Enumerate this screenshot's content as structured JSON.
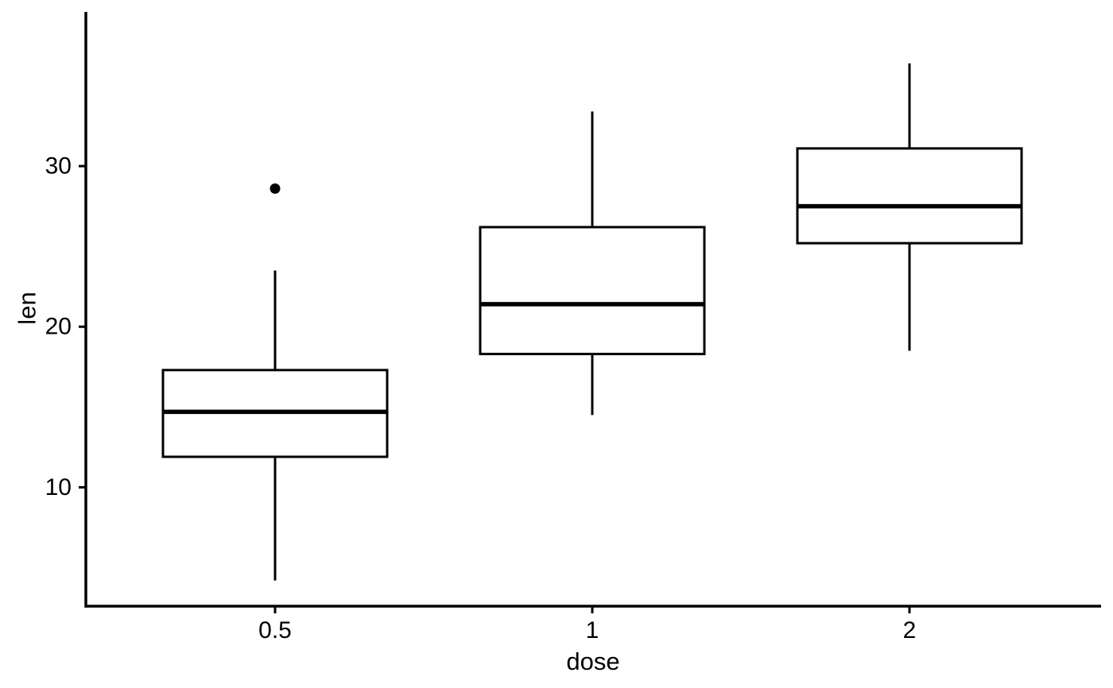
{
  "chart_data": {
    "type": "boxplot",
    "title": "",
    "xlabel": "dose",
    "ylabel": "len",
    "categories": [
      "0.5",
      "1",
      "2"
    ],
    "y_ticks": [
      10,
      20,
      30
    ],
    "ylim": [
      2.6,
      39.6
    ],
    "grid": "off",
    "legend": "none",
    "series": [
      {
        "category": "0.5",
        "whisker_low": 4.2,
        "q1": 11.9,
        "median": 14.7,
        "q3": 17.3,
        "whisker_high": 23.5,
        "outliers": [
          28.6
        ]
      },
      {
        "category": "1",
        "whisker_low": 14.5,
        "q1": 18.3,
        "median": 21.4,
        "q3": 26.2,
        "whisker_high": 33.4,
        "outliers": []
      },
      {
        "category": "2",
        "whisker_low": 18.5,
        "q1": 25.2,
        "median": 27.5,
        "q3": 31.1,
        "whisker_high": 36.4,
        "outliers": []
      }
    ],
    "colors": {
      "stroke": "#000000",
      "box_fill": "#ffffff",
      "background": "#ffffff",
      "text": "#000000"
    }
  }
}
